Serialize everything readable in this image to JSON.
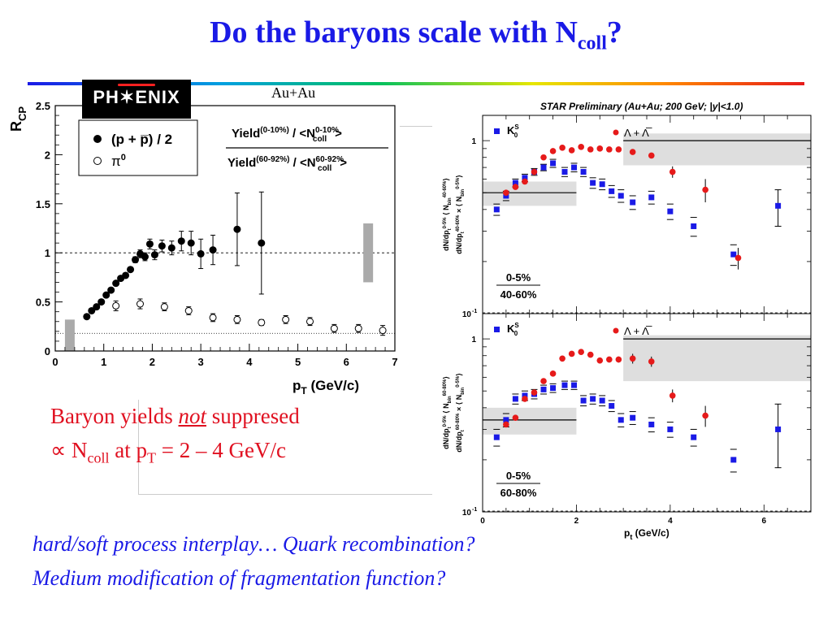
{
  "slide": {
    "title_main": "Do the baryons scale with N",
    "title_sub": "coll",
    "title_end": "?",
    "logo_text": "PH✶ENIX",
    "left_label": "Au+Au",
    "statement_line1_a": "Baryon yields ",
    "statement_line1_not": "not",
    "statement_line1_b": " suppresed",
    "statement_line2_a": "∝ N",
    "statement_line2_sub": "coll",
    "statement_line2_b": " at p",
    "statement_line2_sub2": "T",
    "statement_line2_c": " = 2 – 4 GeV/c",
    "bottom_line1": "hard/soft process interplay… Quark recombination?",
    "bottom_line2": "Medium modification of fragmentation function?"
  },
  "chart_data": [
    {
      "type": "scatter",
      "ylabel": "R",
      "ylabel_sub": "CP",
      "xlabel": "p",
      "xlabel_sub": "T",
      "xlabel_unit": " (GeV/c)",
      "xlim": [
        0,
        7
      ],
      "ylim": [
        0,
        2.5
      ],
      "xticks": [
        "0",
        "1",
        "2",
        "3",
        "4",
        "5",
        "6",
        "7"
      ],
      "yticks": [
        "0",
        "0.5",
        "1",
        "1.5",
        "2",
        "2.5"
      ],
      "reference_lines": [
        1.0,
        0.18
      ],
      "legend": {
        "proton": "(p + p̅) / 2",
        "pion": "π",
        "pion_sup": "0"
      },
      "ratio_label": {
        "num": "Yield",
        "num_sup": "(0-10%)",
        "num_b": " / <N",
        "num_sup2": "0-10%",
        "num_sub2": "coll",
        "num_c": ">",
        "den": "Yield",
        "den_sup": "(60-92%)",
        "den_b": " / <N",
        "den_sup2": "60-92%",
        "den_sub2": "coll",
        "den_c": ">"
      },
      "series": [
        {
          "name": "(p + p̅) / 2",
          "marker": "filled-circle",
          "points": [
            {
              "x": 0.65,
              "y": 0.35
            },
            {
              "x": 0.75,
              "y": 0.41
            },
            {
              "x": 0.85,
              "y": 0.45
            },
            {
              "x": 0.95,
              "y": 0.5
            },
            {
              "x": 1.05,
              "y": 0.57
            },
            {
              "x": 1.15,
              "y": 0.62
            },
            {
              "x": 1.25,
              "y": 0.69
            },
            {
              "x": 1.35,
              "y": 0.74
            },
            {
              "x": 1.45,
              "y": 0.77
            },
            {
              "x": 1.55,
              "y": 0.83
            },
            {
              "x": 1.65,
              "y": 0.93
            },
            {
              "x": 1.75,
              "y": 0.99
            },
            {
              "x": 1.85,
              "y": 0.96
            },
            {
              "x": 1.95,
              "y": 1.09
            },
            {
              "x": 2.05,
              "y": 0.98
            },
            {
              "x": 2.2,
              "y": 1.07
            },
            {
              "x": 2.4,
              "y": 1.05
            },
            {
              "x": 2.6,
              "y": 1.12
            },
            {
              "x": 2.8,
              "y": 1.1
            },
            {
              "x": 3.0,
              "y": 0.99
            },
            {
              "x": 3.25,
              "y": 1.03
            },
            {
              "x": 3.75,
              "y": 1.24
            },
            {
              "x": 4.25,
              "y": 1.1
            }
          ],
          "errors": [
            0,
            0,
            0,
            0,
            0,
            0,
            0,
            0,
            0,
            0,
            0.03,
            0.04,
            0.04,
            0.05,
            0.05,
            0.06,
            0.07,
            0.1,
            0.12,
            0.15,
            0.15,
            0.37,
            0.52
          ]
        },
        {
          "name": "π0",
          "marker": "open-circle",
          "points": [
            {
              "x": 1.25,
              "y": 0.46
            },
            {
              "x": 1.75,
              "y": 0.48
            },
            {
              "x": 2.25,
              "y": 0.45
            },
            {
              "x": 2.75,
              "y": 0.41
            },
            {
              "x": 3.25,
              "y": 0.34
            },
            {
              "x": 3.75,
              "y": 0.32
            },
            {
              "x": 4.25,
              "y": 0.29
            },
            {
              "x": 4.75,
              "y": 0.32
            },
            {
              "x": 5.25,
              "y": 0.3
            },
            {
              "x": 5.75,
              "y": 0.23
            },
            {
              "x": 6.25,
              "y": 0.23
            },
            {
              "x": 6.75,
              "y": 0.21
            }
          ],
          "errors": [
            0.05,
            0.05,
            0.04,
            0.04,
            0.04,
            0.04,
            0.03,
            0.04,
            0.04,
            0.04,
            0.04,
            0.05
          ]
        }
      ],
      "systematic_bands": [
        {
          "x": 0.3,
          "ylow": 0.0,
          "yhigh": 0.32
        },
        {
          "x": 6.45,
          "ylow": 0.7,
          "yhigh": 1.3
        }
      ]
    },
    {
      "type": "scatter",
      "title": "STAR Preliminary (Au+Au; 200 GeV; |y|<1.0)",
      "xlabel": "p",
      "xlabel_sub": "t",
      "xlabel_unit": " (GeV/c)",
      "xlim": [
        0,
        7
      ],
      "ylim_log": [
        0.1,
        1.4
      ],
      "xticks": [
        "0",
        "2",
        "4",
        "6"
      ],
      "yticks": [
        "1",
        "10"
      ],
      "ytick_sup": "-1",
      "log_scale": true,
      "legend": {
        "kaon": "K",
        "kaon_sup": "S",
        "kaon_sub": "0",
        "lambda": "Λ + Λ̅"
      },
      "panels": [
        {
          "label_top": "0-5%",
          "label_bottom": "40-60%",
          "ylabel_line1": "dN/dp",
          "ylabel_line1_sub": "t",
          "ylabel_line1_sup": "0-5%",
          "ylabel_line1_b": "⟨ N",
          "ylabel_line1_sub2": "bin",
          "ylabel_line1_sup2": "40-60%",
          "ylabel_line1_c": "⟩",
          "ylabel_line2": "dN/dp",
          "ylabel_line2_sub": "t",
          "ylabel_line2_sup": "40-60%",
          "ylabel_line2_b": "× ⟨ N",
          "ylabel_line2_sub2": "bin",
          "ylabel_line2_sup2": "0-5%",
          "ylabel_line2_c": "⟩",
          "kaon": [
            {
              "x": 0.3,
              "y": 0.4
            },
            {
              "x": 0.5,
              "y": 0.48
            },
            {
              "x": 0.7,
              "y": 0.57
            },
            {
              "x": 0.9,
              "y": 0.61
            },
            {
              "x": 1.1,
              "y": 0.66
            },
            {
              "x": 1.3,
              "y": 0.7
            },
            {
              "x": 1.5,
              "y": 0.74
            },
            {
              "x": 1.75,
              "y": 0.66
            },
            {
              "x": 1.95,
              "y": 0.7
            },
            {
              "x": 2.15,
              "y": 0.66
            },
            {
              "x": 2.35,
              "y": 0.57
            },
            {
              "x": 2.55,
              "y": 0.56
            },
            {
              "x": 2.75,
              "y": 0.51
            },
            {
              "x": 2.95,
              "y": 0.48
            },
            {
              "x": 3.2,
              "y": 0.44
            },
            {
              "x": 3.6,
              "y": 0.47
            },
            {
              "x": 4.0,
              "y": 0.39
            },
            {
              "x": 4.5,
              "y": 0.32
            },
            {
              "x": 5.35,
              "y": 0.22
            },
            {
              "x": 6.3,
              "y": 0.42
            }
          ],
          "kaon_err": [
            0.03,
            0.03,
            0.03,
            0.03,
            0.03,
            0.03,
            0.04,
            0.04,
            0.04,
            0.04,
            0.04,
            0.04,
            0.04,
            0.04,
            0.04,
            0.04,
            0.04,
            0.04,
            0.03,
            0.1
          ],
          "lambda": [
            {
              "x": 0.5,
              "y": 0.5
            },
            {
              "x": 0.7,
              "y": 0.54
            },
            {
              "x": 0.9,
              "y": 0.58
            },
            {
              "x": 1.1,
              "y": 0.66
            },
            {
              "x": 1.3,
              "y": 0.8
            },
            {
              "x": 1.5,
              "y": 0.87
            },
            {
              "x": 1.7,
              "y": 0.91
            },
            {
              "x": 1.9,
              "y": 0.88
            },
            {
              "x": 2.1,
              "y": 0.92
            },
            {
              "x": 2.3,
              "y": 0.89
            },
            {
              "x": 2.5,
              "y": 0.9
            },
            {
              "x": 2.7,
              "y": 0.89
            },
            {
              "x": 2.9,
              "y": 0.89
            },
            {
              "x": 3.2,
              "y": 0.86
            },
            {
              "x": 3.6,
              "y": 0.82
            },
            {
              "x": 4.05,
              "y": 0.66
            },
            {
              "x": 4.75,
              "y": 0.52
            },
            {
              "x": 5.45,
              "y": 0.21
            }
          ],
          "lambda_err": [
            0.02,
            0.02,
            0.02,
            0.02,
            0.02,
            0.02,
            0.02,
            0.02,
            0.02,
            0.02,
            0.02,
            0.02,
            0.02,
            0.03,
            0.03,
            0.05,
            0.08,
            0.03
          ],
          "bands": [
            {
              "x0": 0.0,
              "x1": 2.0,
              "ylow": 0.42,
              "yhigh": 0.58,
              "level": 0.5
            },
            {
              "x0": 3.0,
              "x1": 7.0,
              "ylow": 0.72,
              "yhigh": 1.1,
              "level": 1.0
            }
          ]
        },
        {
          "label_top": "0-5%",
          "label_bottom": "60-80%",
          "ylabel_line1": "dN/dp",
          "ylabel_line1_sub": "t",
          "ylabel_line1_sup": "0-5%",
          "ylabel_line1_b": "⟨ N",
          "ylabel_line1_sub2": "bin",
          "ylabel_line1_sup2": "60-80%",
          "ylabel_line1_c": "⟩",
          "ylabel_line2": "dN/dp",
          "ylabel_line2_sub": "t",
          "ylabel_line2_sup": "60-80%",
          "ylabel_line2_b": "× ⟨ N",
          "ylabel_line2_sub2": "bin",
          "ylabel_line2_sup2": "0-5%",
          "ylabel_line2_c": "⟩",
          "kaon": [
            {
              "x": 0.3,
              "y": 0.27
            },
            {
              "x": 0.5,
              "y": 0.34
            },
            {
              "x": 0.7,
              "y": 0.45
            },
            {
              "x": 0.9,
              "y": 0.47
            },
            {
              "x": 1.1,
              "y": 0.48
            },
            {
              "x": 1.3,
              "y": 0.51
            },
            {
              "x": 1.5,
              "y": 0.52
            },
            {
              "x": 1.75,
              "y": 0.54
            },
            {
              "x": 1.95,
              "y": 0.54
            },
            {
              "x": 2.15,
              "y": 0.44
            },
            {
              "x": 2.35,
              "y": 0.45
            },
            {
              "x": 2.55,
              "y": 0.44
            },
            {
              "x": 2.75,
              "y": 0.41
            },
            {
              "x": 2.95,
              "y": 0.34
            },
            {
              "x": 3.2,
              "y": 0.35
            },
            {
              "x": 3.6,
              "y": 0.32
            },
            {
              "x": 4.0,
              "y": 0.3
            },
            {
              "x": 4.5,
              "y": 0.27
            },
            {
              "x": 5.35,
              "y": 0.2
            },
            {
              "x": 6.3,
              "y": 0.3
            }
          ],
          "kaon_err": [
            0.03,
            0.03,
            0.03,
            0.03,
            0.03,
            0.03,
            0.03,
            0.03,
            0.03,
            0.03,
            0.03,
            0.03,
            0.03,
            0.03,
            0.03,
            0.03,
            0.03,
            0.03,
            0.03,
            0.12
          ],
          "lambda": [
            {
              "x": 0.5,
              "y": 0.32
            },
            {
              "x": 0.7,
              "y": 0.35
            },
            {
              "x": 0.9,
              "y": 0.45
            },
            {
              "x": 1.1,
              "y": 0.49
            },
            {
              "x": 1.3,
              "y": 0.57
            },
            {
              "x": 1.5,
              "y": 0.63
            },
            {
              "x": 1.7,
              "y": 0.77
            },
            {
              "x": 1.9,
              "y": 0.82
            },
            {
              "x": 2.1,
              "y": 0.84
            },
            {
              "x": 2.3,
              "y": 0.81
            },
            {
              "x": 2.5,
              "y": 0.75
            },
            {
              "x": 2.7,
              "y": 0.76
            },
            {
              "x": 2.9,
              "y": 0.76
            },
            {
              "x": 3.2,
              "y": 0.77
            },
            {
              "x": 3.6,
              "y": 0.74
            },
            {
              "x": 4.05,
              "y": 0.47
            },
            {
              "x": 4.75,
              "y": 0.36
            }
          ],
          "lambda_err": [
            0.02,
            0.02,
            0.02,
            0.02,
            0.02,
            0.02,
            0.03,
            0.03,
            0.03,
            0.03,
            0.03,
            0.03,
            0.03,
            0.05,
            0.05,
            0.04,
            0.05
          ],
          "bands": [
            {
              "x0": 0.0,
              "x1": 2.0,
              "ylow": 0.28,
              "yhigh": 0.4,
              "level": 0.34
            },
            {
              "x0": 3.0,
              "x1": 7.0,
              "ylow": 0.57,
              "yhigh": 1.05,
              "level": 1.0
            }
          ]
        }
      ]
    }
  ]
}
